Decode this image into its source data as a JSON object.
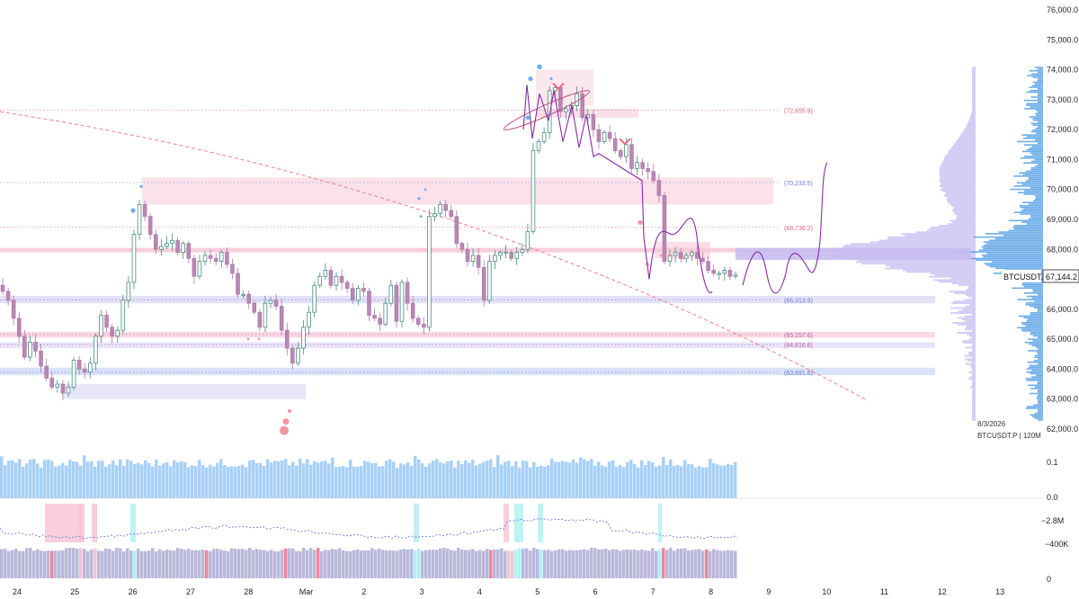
{
  "colors": {
    "up": "#4a8c7e",
    "down": "#b07aa6",
    "up_fill": "#ffffff",
    "down_fill": "#b888b5",
    "resistance": "#f08a9a",
    "support": "#7b84d9",
    "zone_pink": "#f7c9d9",
    "zone_purple": "#d9d4f4",
    "zone_blue": "#c7d6f5",
    "volume": "#a8d0f7",
    "vp_blue": "#2f8ae0",
    "vp_lilac": "#c7bdf0",
    "path": "#8b2aa8",
    "curve": "#f07e8a",
    "osc_bar": "#b9b8da",
    "osc_cyan": "#aef0f4",
    "osc_pink": "#f7c2d4",
    "osc_red": "#f2839a",
    "axis_text": "#222222"
  },
  "chart_data": {
    "type": "candlestick",
    "symbol": "BTCUSDT.P",
    "timeframe": "120M",
    "date_label": "8/3/2026",
    "last_price": "67,144.2",
    "ylim": [
      61700,
      76200
    ],
    "y_ticks": [
      {
        "value": 76000,
        "label": "76,000.0"
      },
      {
        "value": 75000,
        "label": "75,000.0"
      },
      {
        "value": 74000,
        "label": "74,000.0"
      },
      {
        "value": 73000,
        "label": "73,000.0"
      },
      {
        "value": 72000,
        "label": "72,000.0"
      },
      {
        "value": 71000,
        "label": "71,000.0"
      },
      {
        "value": 70000,
        "label": "70,000.0"
      },
      {
        "value": 69000,
        "label": "69,000.0"
      },
      {
        "value": 68000,
        "label": "68,000.0"
      },
      {
        "value": 66000,
        "label": "66,000.0"
      },
      {
        "value": 65000,
        "label": "65,000.0"
      },
      {
        "value": 64000,
        "label": "64,000.0"
      },
      {
        "value": 63000,
        "label": "63,000.0"
      },
      {
        "value": 62000,
        "label": "62,000.0"
      }
    ],
    "x_ticks": [
      "24",
      "25",
      "26",
      "27",
      "28",
      "Mar",
      "2",
      "3",
      "4",
      "5",
      "6",
      "7",
      "8",
      "9",
      "10",
      "11",
      "12",
      "13"
    ],
    "levels": [
      {
        "value": 72655.9,
        "label": "(72,655.9)",
        "color": "#e0627a"
      },
      {
        "value": 70233.5,
        "label": "(70,233.5)",
        "color": "#6d78d6"
      },
      {
        "value": 68736.2,
        "label": "(68,736.2)",
        "color": "#e0627a"
      },
      {
        "value": 66313.9,
        "label": "(66,313.9)",
        "color": "#6d78d6"
      },
      {
        "value": 65157.6,
        "label": "(65,157.6)",
        "color": "#c05aa8"
      },
      {
        "value": 64816.6,
        "label": "(64,816.6)",
        "color": "#c05aa8"
      },
      {
        "value": 63891.6,
        "label": "(63,891.6)",
        "color": "#6d78d6"
      }
    ],
    "closes": [
      66600,
      66300,
      65700,
      65100,
      64400,
      64900,
      64600,
      64100,
      63700,
      63400,
      63500,
      63200,
      63400,
      64300,
      64000,
      63900,
      64200,
      65100,
      65800,
      65400,
      65100,
      65300,
      66300,
      66900,
      68500,
      69500,
      69100,
      68500,
      68000,
      68100,
      68200,
      68300,
      67900,
      68200,
      67700,
      67100,
      67600,
      67800,
      67700,
      67600,
      67900,
      67500,
      67200,
      66500,
      66500,
      66200,
      65900,
      65400,
      66200,
      66300,
      66100,
      65300,
      64700,
      64200,
      64700,
      65400,
      65900,
      66800,
      67100,
      67300,
      66800,
      67100,
      66900,
      66700,
      66300,
      66700,
      66600,
      65800,
      65700,
      65500,
      66200,
      66800,
      65600,
      66900,
      66200,
      65700,
      65500,
      65400,
      69100,
      69200,
      69500,
      69300,
      69100,
      68200,
      68000,
      67600,
      67800,
      67400,
      66300,
      67600,
      67800,
      67900,
      67900,
      67700,
      67900,
      68000,
      68600,
      71300,
      71600,
      71900,
      73300,
      73400,
      72600,
      72700,
      72800,
      73200,
      72400,
      72500,
      72000,
      71600,
      71900,
      71700,
      71300,
      71100,
      71500,
      70700,
      70900,
      70700,
      70600,
      70300,
      69800,
      67600,
      67800,
      67900,
      67700,
      67800,
      67900,
      67700,
      67600,
      67300,
      67200,
      67200,
      67300,
      67100,
      67144
    ]
  },
  "labels": {
    "symbol_tag": "BTCUSDT.P",
    "price_tag": "67,144.2",
    "info_date": "8/3/2026",
    "info_symbol": "BTCUSDT.P | 120M",
    "vol_axis_top": "0.1",
    "vol_axis_zero": "0.0",
    "osc_axis_val": "−2.8M",
    "osc_axis_val2": "−400K",
    "osc_axis_zero": "0"
  }
}
